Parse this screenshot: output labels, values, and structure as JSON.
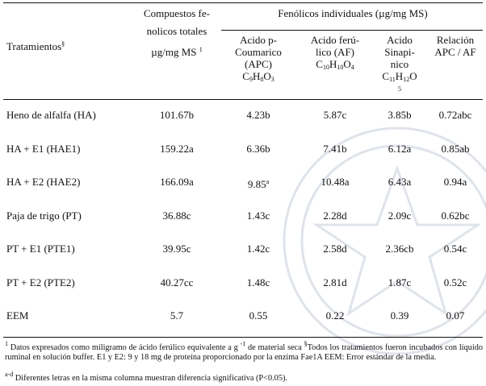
{
  "header": {
    "tratamientos": "Tratamientos",
    "tratamientos_mark": "§",
    "compuestos_l1": "Compuestos fe-",
    "compuestos_l2": "nolicos totales",
    "compuestos_unit": "µg/mg MS",
    "compuestos_mark": "1",
    "fenolicos": "Fenólicos individuales (µg/mg MS)",
    "apc_l1": "Acido p-",
    "apc_l2": "Coumarico",
    "apc_l3": "(APC)",
    "apc_formula": [
      "C",
      "9",
      "H",
      "8",
      "O",
      "3"
    ],
    "af_l1": "Acido ferú-",
    "af_l2": "lico (AF)",
    "af_formula": [
      "C",
      "10",
      "H",
      "10",
      "O",
      "4"
    ],
    "sin_l1": "Acido",
    "sin_l2": "Sinapi-",
    "sin_l3": "nico",
    "sin_formula": [
      "C",
      "11",
      "H",
      "12",
      "O"
    ],
    "sin_l5": "5",
    "rel_l1": "Relación",
    "rel_l2": "APC / AF"
  },
  "rows": [
    {
      "name": "Heno de alfalfa (HA)",
      "total": "101.67b",
      "apc": "4.23b",
      "af": "5.87c",
      "sin": "3.85b",
      "rel": "0.72abc"
    },
    {
      "name": "HA + E1 (HAE1)",
      "total": "159.22a",
      "apc": "6.36b",
      "af": "7.41b",
      "sin": "6.12a",
      "rel": "0.85ab"
    },
    {
      "name": "HA + E2 (HAE2)",
      "total": "166.09a",
      "apc": "9.85",
      "apc_mark": "a",
      "af": "10.48a",
      "sin": "6.43a",
      "rel": "0.94a"
    },
    {
      "name": "Paja de trigo (PT)",
      "total": "36.88c",
      "apc": "1.43c",
      "af": "2.28d",
      "sin": "2.09c",
      "rel": "0.62bc"
    },
    {
      "name": "PT + E1 (PTE1)",
      "total": "39.95c",
      "apc": "1.42c",
      "af": "2.58d",
      "sin": "2.36cb",
      "rel": "0.54c"
    },
    {
      "name": "PT + E2 (PTE2)",
      "total": "40.27cc",
      "apc": "1.48c",
      "af": "2.81d",
      "sin": "1.87c",
      "rel": "0.52c"
    },
    {
      "name": "EEM",
      "total": "5.7",
      "apc": "0.55",
      "af": "0.22",
      "sin": "0.39",
      "rel": "0.07"
    }
  ],
  "footnotes": {
    "n1_mark": "1",
    "n1_text": " Datos expresados como miligramo de ácido ferúlico equivalente a g ",
    "n1_exp": "-1",
    "n1_text2": " de material seca ",
    "n2_mark": "§",
    "n2_text": "Todos los tratamientos fueron incubados con líquido ruminal en solución buffer. E1 y E2: 9 y 18 mg de proteína proporcionado por la enzima Fae1A EEM: Error estándar de la media.",
    "n3_mark": "a-d",
    "n3_text": " Diferentes letras en la misma columna muestran diferencia significativa (P<0.05)."
  }
}
